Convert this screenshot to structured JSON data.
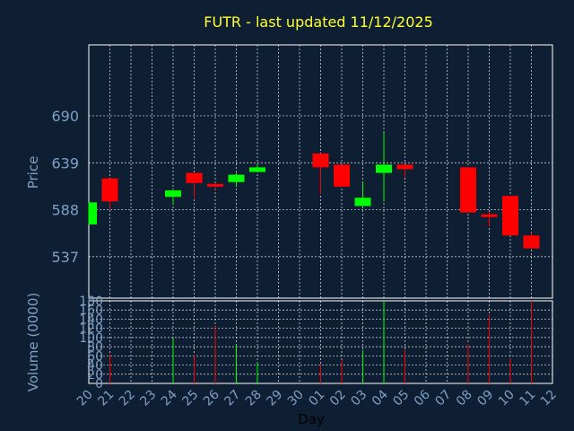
{
  "chart_data": {
    "type": "candlestick",
    "title": "FUTR - last updated 11/12/2025",
    "ylabel": "Price",
    "volume_label": "Volume (0000)",
    "xlabel": "Day",
    "up_color": "#00ff00",
    "down_color": "#ff0000",
    "price_ylim": [
      492,
      767
    ],
    "price_ticks": [
      537,
      588,
      639,
      690
    ],
    "volume_ylim": [
      0,
      180
    ],
    "volume_ticks": [
      0,
      20,
      40,
      60,
      80,
      100,
      120,
      140,
      160,
      180
    ],
    "x_ticks": [
      "20",
      "21",
      "22",
      "23",
      "24",
      "25",
      "26",
      "27",
      "28",
      "29",
      "30",
      "01",
      "02",
      "03",
      "04",
      "05",
      "06",
      "07",
      "08",
      "09",
      "10",
      "11",
      "12"
    ],
    "candles": [
      {
        "day": "20",
        "open": 572,
        "close": 596,
        "high": 596,
        "low": 572,
        "volume": 0
      },
      {
        "day": "21",
        "open": 622,
        "close": 597,
        "high": 622,
        "low": 589,
        "volume": 62
      },
      {
        "day": "24",
        "open": 602,
        "close": 609,
        "high": 610,
        "low": 594,
        "volume": 98
      },
      {
        "day": "25",
        "open": 628,
        "close": 617,
        "high": 628,
        "low": 600,
        "volume": 63
      },
      {
        "day": "26",
        "open": 616,
        "close": 613,
        "high": 617,
        "low": 610,
        "volume": 124
      },
      {
        "day": "27",
        "open": 618,
        "close": 626,
        "high": 628,
        "low": 614,
        "volume": 84
      },
      {
        "day": "28",
        "open": 629,
        "close": 634,
        "high": 637,
        "low": 629,
        "volume": 47
      },
      {
        "day": "01",
        "open": 649,
        "close": 634,
        "high": 649,
        "low": 605,
        "volume": 42
      },
      {
        "day": "02",
        "open": 637,
        "close": 613,
        "high": 637,
        "low": 613,
        "volume": 50
      },
      {
        "day": "03",
        "open": 592,
        "close": 601,
        "high": 618,
        "low": 592,
        "volume": 72
      },
      {
        "day": "04",
        "open": 628,
        "close": 637,
        "high": 672,
        "low": 597,
        "volume": 180
      },
      {
        "day": "05",
        "open": 637,
        "close": 632,
        "high": 637,
        "low": 623,
        "volume": 73
      },
      {
        "day": "08",
        "open": 634,
        "close": 585,
        "high": 634,
        "low": 585,
        "volume": 86
      },
      {
        "day": "09",
        "open": 583,
        "close": 580,
        "high": 586,
        "low": 570,
        "volume": 150
      },
      {
        "day": "10",
        "open": 603,
        "close": 560,
        "high": 603,
        "low": 560,
        "volume": 54
      },
      {
        "day": "11",
        "open": 560,
        "close": 546,
        "high": 563,
        "low": 545,
        "volume": 180
      }
    ]
  }
}
